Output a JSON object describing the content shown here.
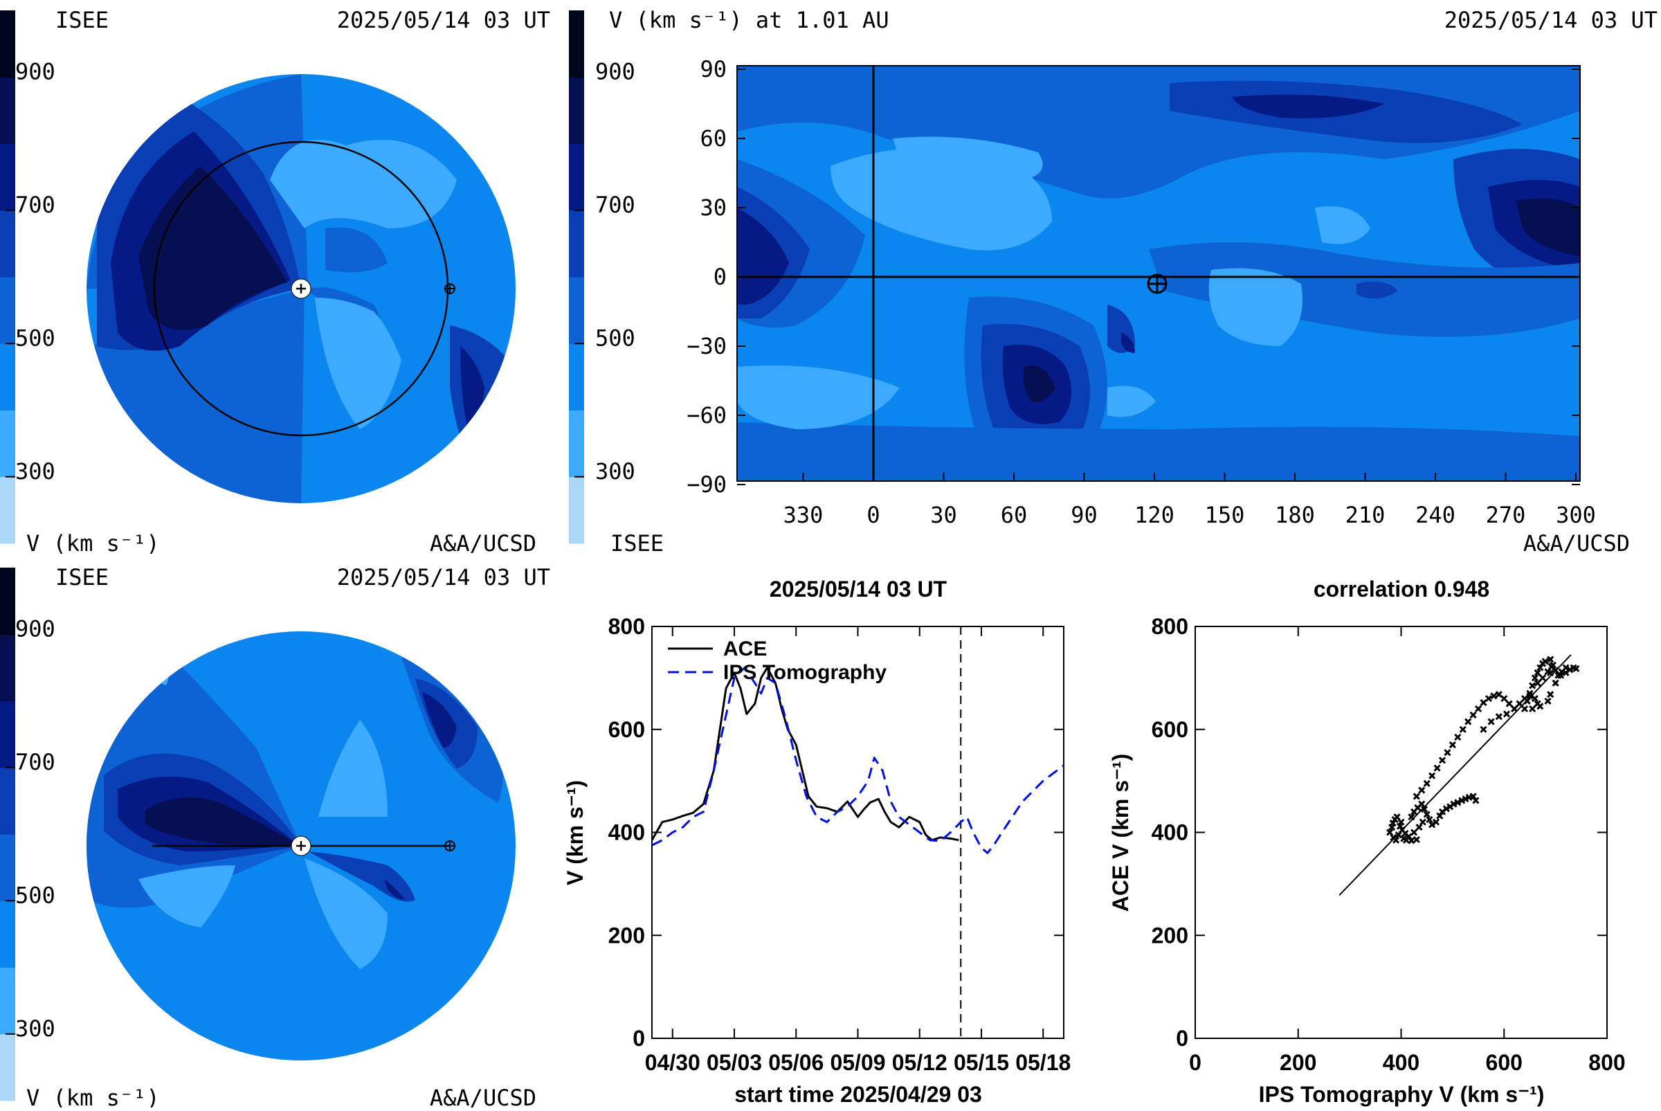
{
  "colorbar": {
    "ticks": [
      "900",
      "700",
      "500",
      "300"
    ],
    "unit_label": "V (km s⁻¹)",
    "colors": [
      "#aad8f6",
      "#3caaff",
      "#0b86ee",
      "#0d63d3",
      "#0a3eb4",
      "#061a85",
      "#050f52",
      "#00051e"
    ]
  },
  "panel_ecliptic": {
    "source": "ISEE",
    "date": "2025/05/14 03 UT",
    "credit": "A&A/UCSD",
    "unit": "V (km s⁻¹)",
    "sun_symbol": "sun-icon",
    "earth_symbol": "earth-icon"
  },
  "panel_meridional": {
    "source": "ISEE",
    "date": "2025/05/14 03 UT",
    "credit": "A&A/UCSD",
    "unit": "V (km s⁻¹)"
  },
  "panel_map": {
    "title": "V (km s⁻¹) at 1.01 AU",
    "date": "2025/05/14 03 UT",
    "source": "ISEE",
    "credit": "A&A/UCSD",
    "y_ticks": [
      "90",
      "60",
      "30",
      "0",
      "−30",
      "−60",
      "−90"
    ],
    "x_ticks": [
      "330",
      "0",
      "30",
      "60",
      "90",
      "120",
      "150",
      "180",
      "210",
      "240",
      "270",
      "300"
    ]
  },
  "chart_data": [
    {
      "type": "line",
      "title": "2025/05/14 03 UT",
      "xlabel": "start time 2025/04/29 03",
      "ylabel": "V (km s⁻¹)",
      "x_tick_labels": [
        "04/30",
        "05/03",
        "05/06",
        "05/09",
        "05/12",
        "05/15",
        "05/18"
      ],
      "x_tick_days": [
        1,
        4,
        7,
        10,
        13,
        16,
        19
      ],
      "xlim_days": [
        0,
        20
      ],
      "ylim": [
        0,
        800
      ],
      "y_ticks": [
        0,
        200,
        400,
        600,
        800
      ],
      "vline_day": 15.0,
      "legend_placement": "top-left",
      "series": [
        {
          "name": "ACE",
          "color": "#000000",
          "style": "solid",
          "x_days": [
            0.0,
            0.5,
            1.0,
            1.5,
            2.0,
            2.5,
            3.0,
            3.3,
            3.6,
            4.0,
            4.3,
            4.6,
            5.0,
            5.3,
            5.6,
            6.0,
            6.3,
            6.6,
            7.0,
            7.3,
            7.6,
            8.0,
            8.5,
            9.0,
            9.5,
            10.0,
            10.3,
            10.6,
            11.0,
            11.3,
            11.6,
            12.0,
            12.5,
            13.0,
            13.3,
            13.6,
            14.0,
            14.5,
            14.9
          ],
          "values": [
            385,
            420,
            425,
            432,
            438,
            455,
            520,
            600,
            680,
            710,
            680,
            630,
            650,
            700,
            720,
            690,
            640,
            600,
            570,
            520,
            470,
            450,
            447,
            440,
            460,
            430,
            445,
            458,
            465,
            440,
            420,
            410,
            430,
            420,
            395,
            385,
            390,
            388,
            385
          ]
        },
        {
          "name": "IPS Tomography",
          "color": "#0010e0",
          "style": "dashed",
          "x_days": [
            0.0,
            0.5,
            1.0,
            1.5,
            2.0,
            2.5,
            3.0,
            3.5,
            4.0,
            4.5,
            5.0,
            5.3,
            5.6,
            6.0,
            6.5,
            7.0,
            7.5,
            8.0,
            8.5,
            9.0,
            9.5,
            10.0,
            10.5,
            10.8,
            11.2,
            11.6,
            12.0,
            12.5,
            13.0,
            13.5,
            14.0,
            14.5,
            15.0,
            15.3,
            15.6,
            16.0,
            16.3,
            16.6,
            17.0,
            17.5,
            18.0,
            18.5,
            19.0,
            19.5,
            20.0
          ],
          "values": [
            375,
            385,
            400,
            410,
            430,
            440,
            520,
            610,
            700,
            720,
            690,
            670,
            700,
            690,
            620,
            540,
            470,
            430,
            420,
            440,
            450,
            470,
            500,
            545,
            520,
            460,
            430,
            415,
            400,
            385,
            383,
            400,
            420,
            430,
            400,
            370,
            360,
            375,
            400,
            430,
            460,
            480,
            500,
            515,
            530
          ]
        }
      ]
    },
    {
      "type": "scatter",
      "title": "correlation 0.948",
      "xlabel": "IPS Tomography V (km s⁻¹)",
      "ylabel": "ACE V (km s⁻¹)",
      "xlim": [
        0,
        800
      ],
      "ylim": [
        0,
        800
      ],
      "ticks": [
        0,
        200,
        400,
        600,
        800
      ],
      "fit_line": [
        [
          280,
          278
        ],
        [
          730,
          745
        ]
      ],
      "points": [
        [
          378,
          400
        ],
        [
          382,
          410
        ],
        [
          385,
          390
        ],
        [
          390,
          385
        ],
        [
          395,
          395
        ],
        [
          400,
          420
        ],
        [
          405,
          388
        ],
        [
          410,
          385
        ],
        [
          420,
          384
        ],
        [
          430,
          386
        ],
        [
          384,
          418
        ],
        [
          388,
          425
        ],
        [
          392,
          430
        ],
        [
          398,
          412
        ],
        [
          402,
          405
        ],
        [
          408,
          398
        ],
        [
          415,
          392
        ],
        [
          425,
          400
        ],
        [
          435,
          410
        ],
        [
          442,
          420
        ],
        [
          420,
          430
        ],
        [
          425,
          440
        ],
        [
          432,
          448
        ],
        [
          440,
          455
        ],
        [
          445,
          445
        ],
        [
          450,
          435
        ],
        [
          455,
          425
        ],
        [
          460,
          415
        ],
        [
          468,
          420
        ],
        [
          475,
          432
        ],
        [
          480,
          440
        ],
        [
          488,
          446
        ],
        [
          495,
          450
        ],
        [
          502,
          455
        ],
        [
          510,
          458
        ],
        [
          518,
          462
        ],
        [
          525,
          465
        ],
        [
          532,
          468
        ],
        [
          540,
          470
        ],
        [
          545,
          462
        ],
        [
          430,
          470
        ],
        [
          440,
          482
        ],
        [
          450,
          495
        ],
        [
          460,
          510
        ],
        [
          470,
          525
        ],
        [
          480,
          540
        ],
        [
          490,
          555
        ],
        [
          500,
          570
        ],
        [
          510,
          585
        ],
        [
          520,
          600
        ],
        [
          530,
          615
        ],
        [
          540,
          628
        ],
        [
          550,
          640
        ],
        [
          560,
          652
        ],
        [
          570,
          660
        ],
        [
          580,
          665
        ],
        [
          590,
          668
        ],
        [
          600,
          660
        ],
        [
          610,
          650
        ],
        [
          620,
          640
        ],
        [
          560,
          600
        ],
        [
          575,
          615
        ],
        [
          590,
          625
        ],
        [
          605,
          630
        ],
        [
          620,
          640
        ],
        [
          630,
          650
        ],
        [
          640,
          660
        ],
        [
          650,
          665
        ],
        [
          660,
          660
        ],
        [
          665,
          650
        ],
        [
          640,
          640
        ],
        [
          645,
          655
        ],
        [
          650,
          670
        ],
        [
          655,
          685
        ],
        [
          660,
          700
        ],
        [
          665,
          710
        ],
        [
          670,
          720
        ],
        [
          675,
          728
        ],
        [
          680,
          732
        ],
        [
          690,
          736
        ],
        [
          695,
          725
        ],
        [
          700,
          715
        ],
        [
          705,
          705
        ],
        [
          712,
          712
        ],
        [
          720,
          720
        ],
        [
          728,
          716
        ],
        [
          735,
          720
        ],
        [
          740,
          718
        ],
        [
          655,
          640
        ],
        [
          670,
          645
        ],
        [
          685,
          655
        ],
        [
          690,
          668
        ],
        [
          700,
          690
        ],
        [
          710,
          705
        ],
        [
          720,
          710
        ],
        [
          665,
          690
        ],
        [
          675,
          700
        ],
        [
          685,
          712
        ],
        [
          692,
          722
        ],
        [
          690,
          710
        ]
      ]
    }
  ]
}
